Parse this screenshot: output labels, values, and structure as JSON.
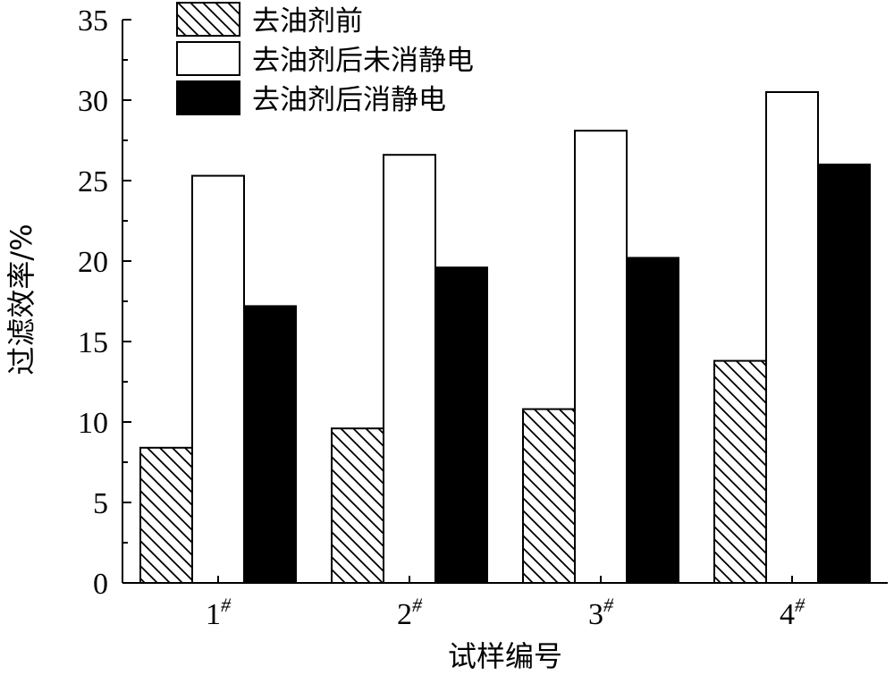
{
  "chart_data": {
    "type": "bar",
    "categories": [
      "1",
      "2",
      "3",
      "4"
    ],
    "category_superscript": "#",
    "series": [
      {
        "name": "去油剂前",
        "values": [
          8.4,
          9.6,
          10.8,
          13.8
        ],
        "fill": "hatch"
      },
      {
        "name": "去油剂后未消静电",
        "values": [
          25.3,
          26.6,
          28.1,
          30.5
        ],
        "fill": "#ffffff"
      },
      {
        "name": "去油剂后消静电",
        "values": [
          17.2,
          19.6,
          20.2,
          26.0
        ],
        "fill": "#000000"
      }
    ],
    "xlabel": "试样编号",
    "ylabel": "过滤效率/%",
    "ylim": [
      0,
      35
    ],
    "yticks": [
      "0",
      "5",
      "10",
      "15",
      "20",
      "25",
      "30",
      "35"
    ],
    "ytick_values": [
      0,
      5,
      10,
      15,
      20,
      25,
      30,
      35
    ],
    "legend_position": "top-left",
    "grid": false
  }
}
